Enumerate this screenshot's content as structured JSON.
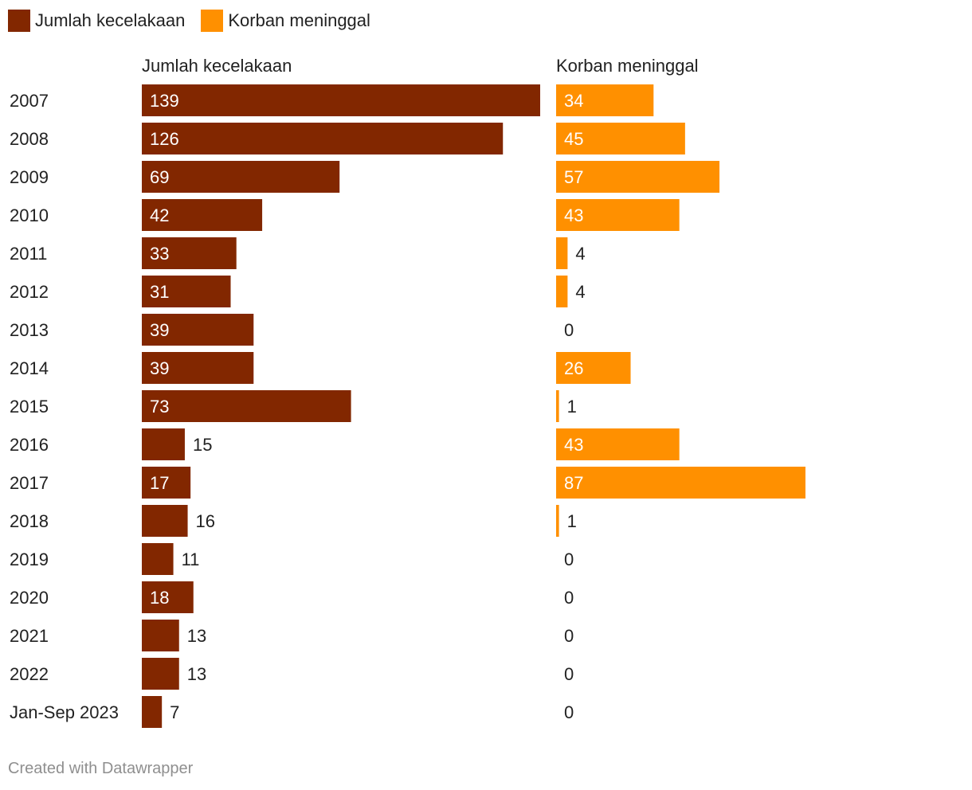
{
  "legend": [
    {
      "label": "Jumlah kecelakaan",
      "color": "#822700"
    },
    {
      "label": "Korban meninggal",
      "color": "#ff9000"
    }
  ],
  "footer": "Created with Datawrapper",
  "chart_data": {
    "type": "bar",
    "orientation": "horizontal",
    "categories": [
      "2007",
      "2008",
      "2009",
      "2010",
      "2011",
      "2012",
      "2013",
      "2014",
      "2015",
      "2016",
      "2017",
      "2018",
      "2019",
      "2020",
      "2021",
      "2022",
      "Jan-Sep 2023"
    ],
    "series": [
      {
        "name": "Jumlah kecelakaan",
        "title": "Jumlah kecelakaan",
        "color": "#822700",
        "values": [
          139,
          126,
          69,
          42,
          33,
          31,
          39,
          39,
          73,
          15,
          17,
          16,
          11,
          18,
          13,
          13,
          7
        ],
        "max": 139
      },
      {
        "name": "Korban meninggal",
        "title": "Korban meninggal",
        "color": "#ff9000",
        "values": [
          34,
          45,
          57,
          43,
          4,
          4,
          0,
          26,
          1,
          43,
          87,
          1,
          0,
          0,
          0,
          0,
          0
        ],
        "max": 139
      }
    ]
  }
}
